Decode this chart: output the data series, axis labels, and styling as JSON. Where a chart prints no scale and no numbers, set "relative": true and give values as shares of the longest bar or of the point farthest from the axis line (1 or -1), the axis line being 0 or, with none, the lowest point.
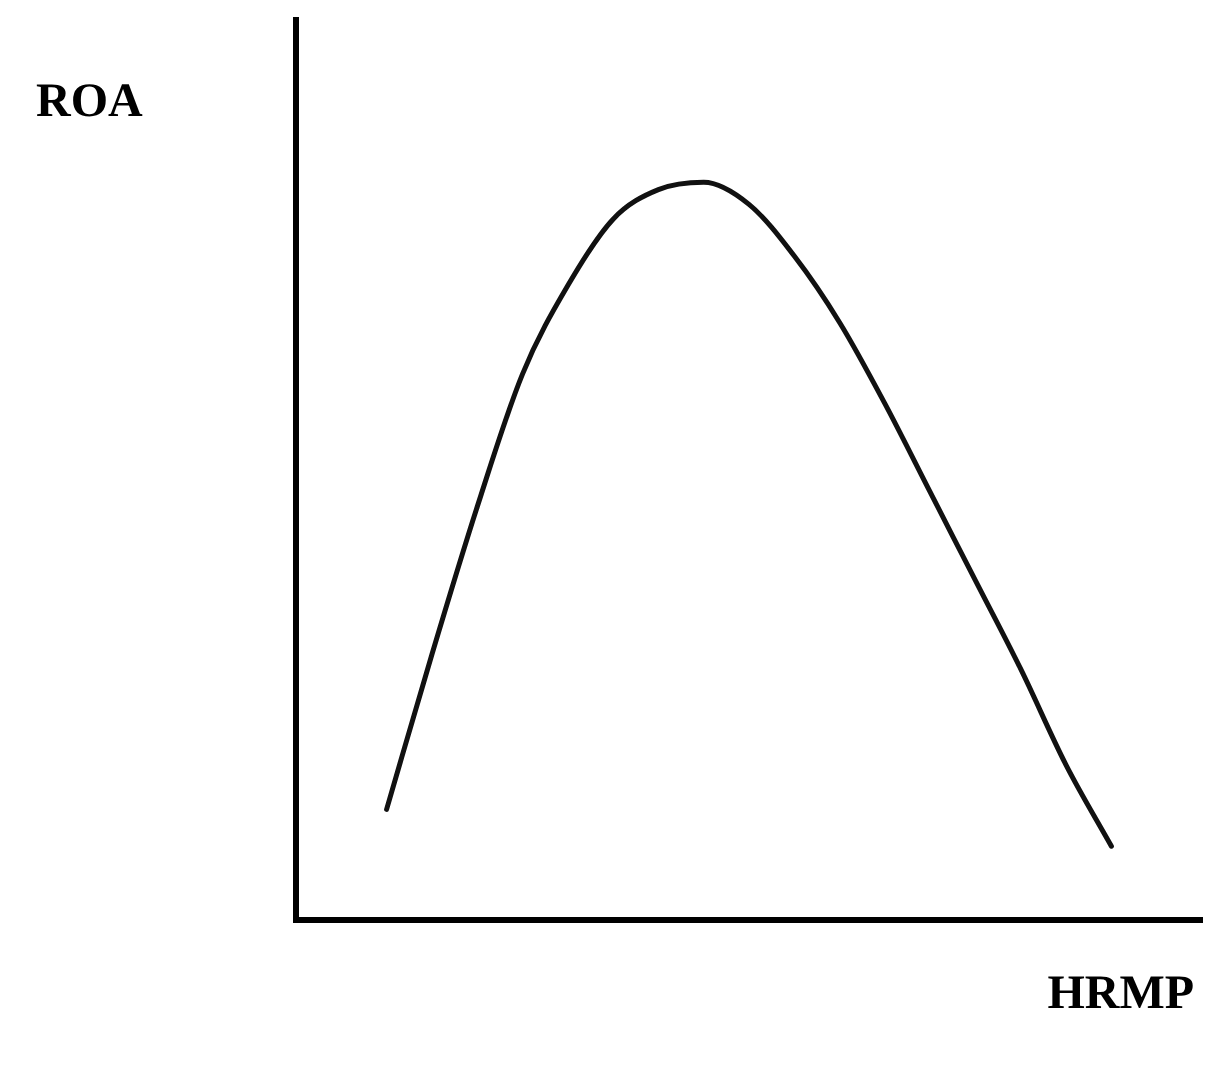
{
  "chart_data": {
    "type": "line",
    "xlabel": "HRMP",
    "ylabel": "ROA",
    "relative": true,
    "grid": false,
    "legend": false,
    "marker": "none",
    "line_style": "solid",
    "categories": [
      null,
      null,
      null,
      null,
      null,
      null,
      null,
      null,
      null,
      null,
      null,
      null,
      null,
      null,
      null,
      null,
      null,
      null,
      null,
      null,
      null
    ],
    "series": [
      {
        "color": "#111111",
        "values": [
          null,
          null,
          0.15,
          0.36,
          0.56,
          0.74,
          0.86,
          0.95,
          0.99,
          1.0,
          0.97,
          0.9,
          0.81,
          0.7,
          0.58,
          0.46,
          0.34,
          0.21,
          0.1,
          null,
          null
        ]
      }
    ]
  }
}
